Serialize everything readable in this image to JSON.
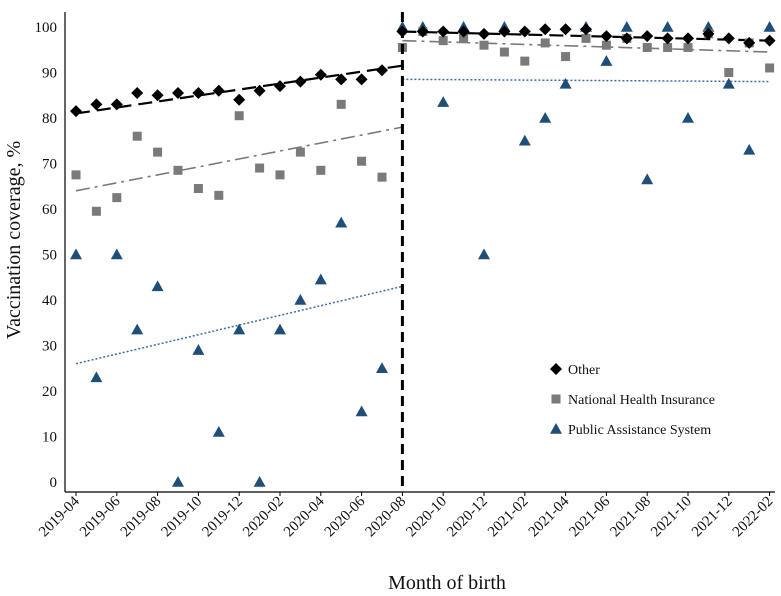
{
  "chart_data": {
    "type": "scatter",
    "xlabel": "Month of birth",
    "ylabel": "Vaccination coverage, %",
    "ylim": [
      0,
      100
    ],
    "yticks": [
      0,
      10,
      20,
      30,
      40,
      50,
      60,
      70,
      80,
      90,
      100
    ],
    "x_months": [
      "2019-04",
      "2019-05",
      "2019-06",
      "2019-07",
      "2019-08",
      "2019-09",
      "2019-10",
      "2019-11",
      "2019-12",
      "2020-01",
      "2020-02",
      "2020-03",
      "2020-04",
      "2020-05",
      "2020-06",
      "2020-07",
      "2020-08",
      "2020-09",
      "2020-10",
      "2020-11",
      "2020-12",
      "2021-01",
      "2021-02",
      "2021-03",
      "2021-04",
      "2021-05",
      "2021-06",
      "2021-07",
      "2021-08",
      "2021-09",
      "2021-10",
      "2021-11",
      "2021-12",
      "2022-01",
      "2022-02"
    ],
    "x_tick_labels": [
      "2019-04",
      "2019-06",
      "2019-08",
      "2019-10",
      "2019-12",
      "2020-02",
      "2020-04",
      "2020-06",
      "2020-08",
      "2020-10",
      "2020-12",
      "2021-02",
      "2021-04",
      "2021-06",
      "2021-08",
      "2021-10",
      "2021-12",
      "2022-02"
    ],
    "breakpoint": "2020-08",
    "legend_position": "right",
    "series": [
      {
        "name": "Other",
        "marker": "diamond",
        "color": "#000000",
        "values": [
          81.5,
          83,
          83,
          85.5,
          85,
          85.5,
          85.5,
          86,
          84,
          86,
          87,
          88,
          89.5,
          88.5,
          88.5,
          90.5,
          99,
          99,
          99,
          99,
          98.5,
          99,
          99,
          99.5,
          99.5,
          99.5,
          98,
          97.5,
          98,
          97.5,
          97.5,
          98.5,
          97.5,
          96.5,
          97
        ]
      },
      {
        "name": "National Health Insurance",
        "marker": "square",
        "color": "#7a7a7a",
        "values": [
          67.5,
          59.5,
          62.5,
          76,
          72.5,
          68.5,
          64.5,
          63,
          80.5,
          69,
          67.5,
          72.5,
          68.5,
          83,
          70.5,
          67,
          95.5,
          99,
          97,
          97.5,
          96,
          94.5,
          92.5,
          96.5,
          93.5,
          97.5,
          96,
          97.5,
          95.5,
          95.5,
          95.5,
          98.5,
          90,
          96.5,
          91
        ]
      },
      {
        "name": "Public Assistance System",
        "marker": "triangle",
        "color": "#1f4e79",
        "values": [
          50,
          23,
          50,
          33.5,
          43,
          0,
          29,
          11,
          33.5,
          0,
          33.5,
          40,
          44.5,
          57,
          15.5,
          25,
          100,
          100,
          83.5,
          100,
          50,
          100,
          75,
          80,
          87.5,
          100,
          92.5,
          100,
          66.5,
          100,
          80,
          100,
          87.5,
          73,
          100
        ]
      }
    ],
    "trend_lines": [
      {
        "series": "Other",
        "style": "dashed",
        "color": "#000000",
        "segments": [
          [
            81,
            91.5
          ],
          [
            99,
            97
          ]
        ]
      },
      {
        "series": "National Health Insurance",
        "style": "dash-dot",
        "color": "#7a7a7a",
        "segments": [
          [
            64,
            78
          ],
          [
            97,
            94.5
          ]
        ]
      },
      {
        "series": "Public Assistance System",
        "style": "dotted",
        "color": "#3a6ea5",
        "segments": [
          [
            26,
            43
          ],
          [
            88.5,
            88
          ]
        ]
      }
    ]
  }
}
